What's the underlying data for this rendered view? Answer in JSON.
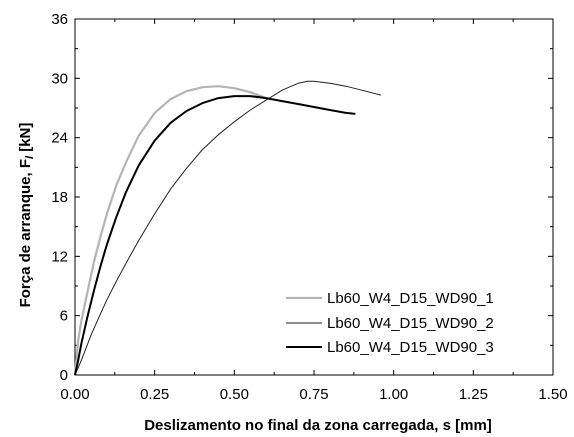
{
  "chart_data": {
    "type": "line",
    "title": "",
    "xlabel": "Deslizamento no final da zona carregada, s",
    "xlabel_var": "s",
    "xlabel_unit": " [mm]",
    "ylabel": "Força de arranque, F",
    "ylabel_var": "l",
    "ylabel_unit": " [kN]",
    "xlim": [
      0,
      1.5
    ],
    "ylim": [
      0,
      36
    ],
    "xticks": [
      0,
      0.25,
      0.5,
      0.75,
      1.0,
      1.25,
      1.5
    ],
    "xtick_labels": [
      "0.00",
      "0.25",
      "0.50",
      "0.75",
      "1.00",
      "1.25",
      "1.50"
    ],
    "yticks": [
      0,
      6,
      12,
      18,
      24,
      30,
      36
    ],
    "ytick_labels": [
      "0",
      "6",
      "12",
      "18",
      "24",
      "30",
      "36"
    ],
    "grid": false,
    "legend_position": "bottom-right",
    "series": [
      {
        "name": "Lb60_W4_D15_WD90_1",
        "color": "#b4b4b4",
        "x": [
          0,
          0.01,
          0.02,
          0.04,
          0.06,
          0.08,
          0.1,
          0.13,
          0.16,
          0.2,
          0.25,
          0.3,
          0.35,
          0.4,
          0.45,
          0.5,
          0.55,
          0.6
        ],
        "y": [
          0,
          3.5,
          5.5,
          8.5,
          11.5,
          14,
          16.3,
          19.2,
          21.5,
          24.2,
          26.5,
          27.9,
          28.7,
          29.1,
          29.2,
          29.0,
          28.6,
          28.0
        ]
      },
      {
        "name": "Lb60_W4_D15_WD90_2",
        "color": "#202020",
        "x": [
          0,
          0.02,
          0.05,
          0.08,
          0.1,
          0.13,
          0.16,
          0.2,
          0.25,
          0.3,
          0.35,
          0.4,
          0.45,
          0.5,
          0.55,
          0.6,
          0.65,
          0.7,
          0.73,
          0.75,
          0.8,
          0.85,
          0.9,
          0.96
        ],
        "y": [
          0,
          1.5,
          4.0,
          6.2,
          7.6,
          9.5,
          11.3,
          13.6,
          16.3,
          18.8,
          20.9,
          22.8,
          24.3,
          25.6,
          26.8,
          27.8,
          28.8,
          29.5,
          29.7,
          29.7,
          29.5,
          29.2,
          28.8,
          28.3
        ]
      },
      {
        "name": "Lb60_W4_D15_WD90_3",
        "color": "#000000",
        "x": [
          0,
          0.01,
          0.02,
          0.04,
          0.06,
          0.08,
          0.1,
          0.13,
          0.16,
          0.2,
          0.25,
          0.3,
          0.35,
          0.4,
          0.45,
          0.5,
          0.55,
          0.6,
          0.65,
          0.7,
          0.75,
          0.8,
          0.85,
          0.88
        ],
        "y": [
          0,
          1.5,
          3.2,
          6.0,
          8.6,
          11.0,
          13.2,
          16.0,
          18.5,
          21.2,
          23.7,
          25.5,
          26.7,
          27.5,
          28.0,
          28.2,
          28.2,
          28.0,
          27.7,
          27.4,
          27.1,
          26.8,
          26.5,
          26.4
        ]
      }
    ]
  }
}
